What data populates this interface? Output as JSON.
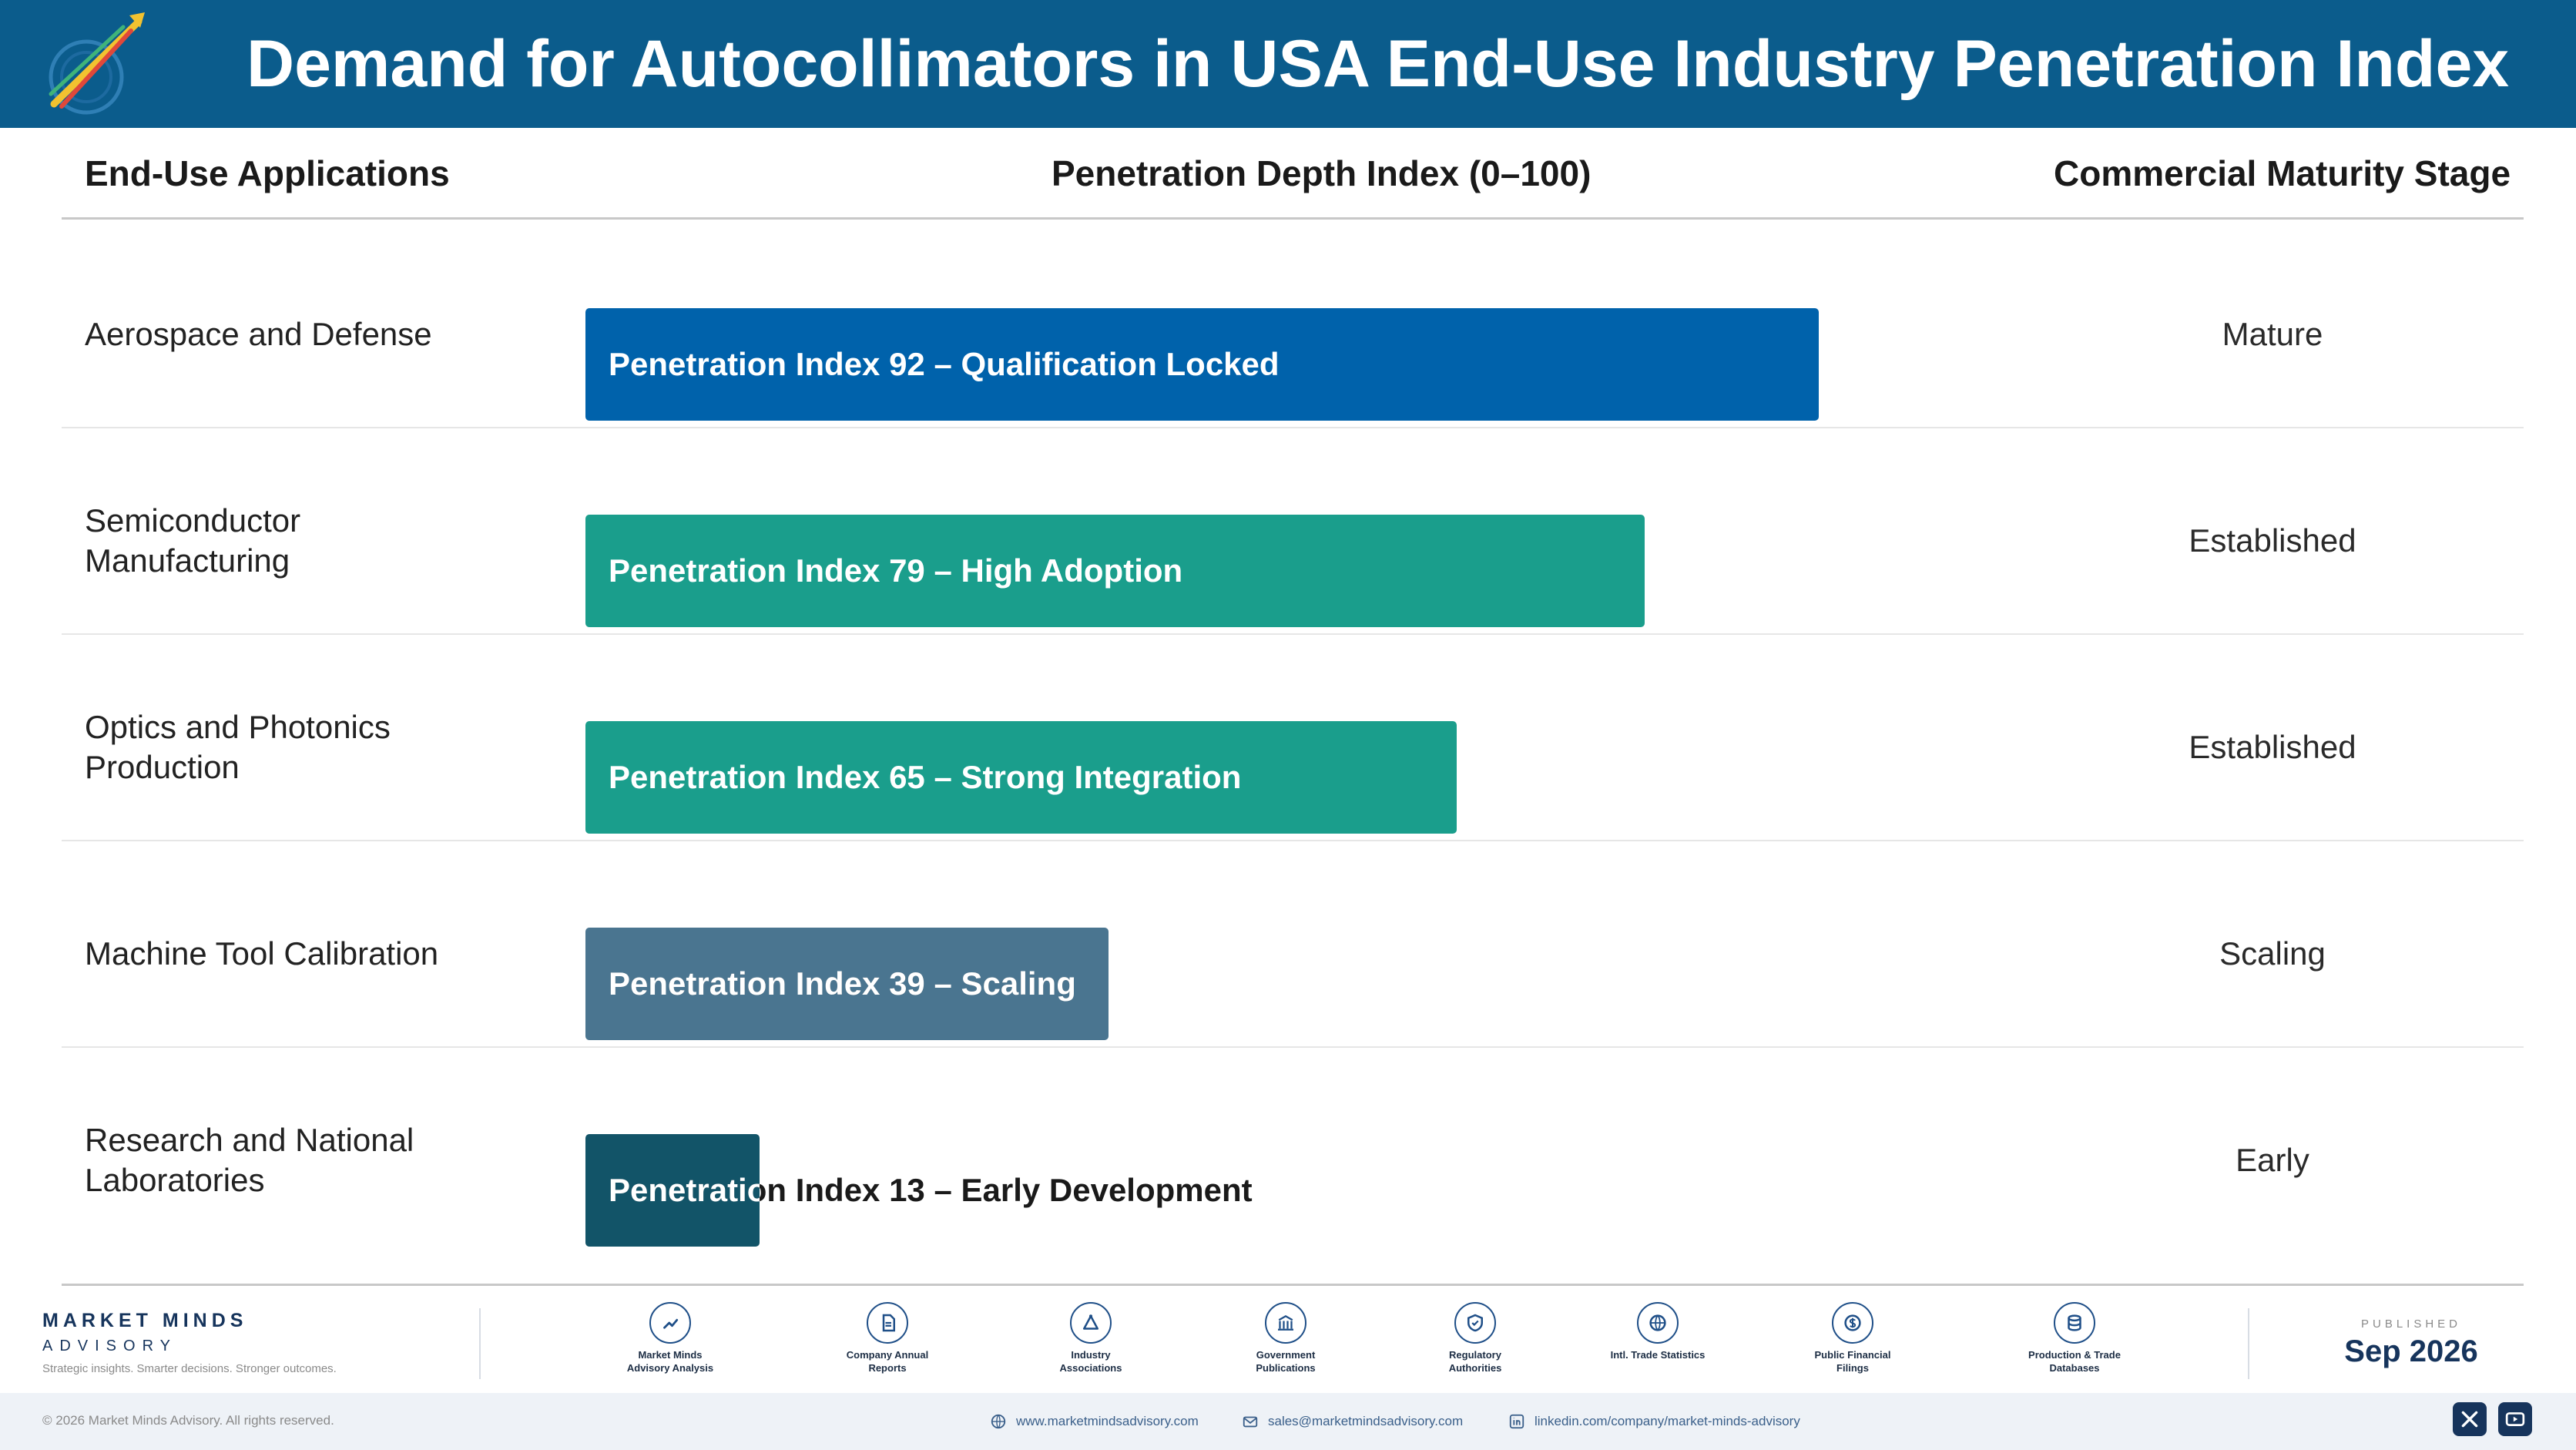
{
  "header": {
    "title": "Demand for Autocollimators in USA End-Use Industry Penetration Index",
    "logo_text": "Market Minds Advisory"
  },
  "columns": {
    "application": "End-Use Applications",
    "depth": "Penetration Depth Index (0–100)",
    "stage": "Commercial Maturity Stage"
  },
  "colors": {
    "banner": "#0b5c8c",
    "mature": "#0062ab",
    "established": "#1a9e8c",
    "scaling": "#4a7590",
    "early": "#125468"
  },
  "chart_data": {
    "type": "bar",
    "orientation": "horizontal",
    "title": "Demand for Autocollimators in USA End-Use Industry Penetration Index",
    "xlabel": "Penetration Depth Index (0–100)",
    "xlim": [
      0,
      100
    ],
    "categories": [
      "Aerospace and Defense",
      "Semiconductor Manufacturing",
      "Optics and Photonics Production",
      "Machine Tool Calibration",
      "Research and National Laboratories"
    ],
    "values": [
      92,
      79,
      65,
      39,
      13
    ],
    "bar_labels": [
      "Penetration Index 92 – Qualification Locked",
      "Penetration Index 79 – High Adoption",
      "Penetration Index 65 – Strong Integration",
      "Penetration Index 39 – Scaling",
      "Penetration Index 13 – Early Development"
    ],
    "stages": [
      "Mature",
      "Established",
      "Established",
      "Scaling",
      "Early"
    ],
    "bar_colors": [
      "#0062ab",
      "#1a9e8c",
      "#1a9e8c",
      "#4a7590",
      "#125468"
    ]
  },
  "footer": {
    "brand_name": "MARKET MINDS",
    "brand_sub": "ADVISORY",
    "tagline": "Strategic insights. Smarter decisions. Stronger outcomes.",
    "sources": [
      {
        "label": "Market Minds Advisory Analysis",
        "icon": "chart-icon"
      },
      {
        "label": "Company Annual Reports",
        "icon": "document-icon"
      },
      {
        "label": "Industry Associations",
        "icon": "network-icon"
      },
      {
        "label": "Government Publications",
        "icon": "building-icon"
      },
      {
        "label": "Regulatory Authorities",
        "icon": "shield-icon"
      },
      {
        "label": "Intl. Trade Statistics",
        "icon": "globe-icon"
      },
      {
        "label": "Public Financial Filings",
        "icon": "dollar-icon"
      },
      {
        "label": "Production & Trade Databases",
        "icon": "database-icon"
      }
    ],
    "published_label": "PUBLISHED",
    "published_date": "Sep 2026",
    "copyright": "© 2026 Market Minds Advisory. All rights reserved.",
    "website": "www.marketmindsadvisory.com",
    "email": "sales@marketmindsadvisory.com",
    "linkedin": "linkedin.com/company/market-minds-advisory"
  }
}
